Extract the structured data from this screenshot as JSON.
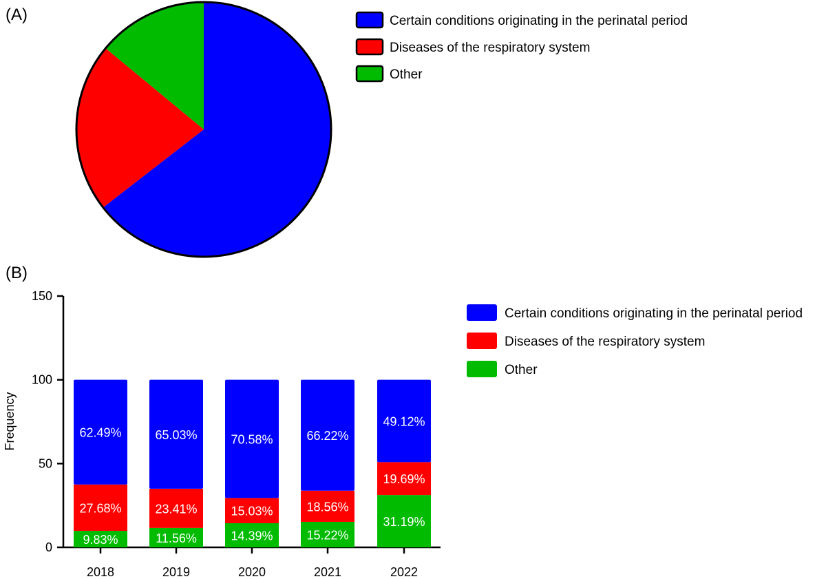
{
  "panels": {
    "a_label": "(A)",
    "b_label": "(B)"
  },
  "colors": {
    "perinatal": "#0000ff",
    "respiratory": "#ff0000",
    "other": "#00bb00"
  },
  "chart_data": [
    {
      "type": "pie",
      "panel": "(A)",
      "labels": [
        "Certain conditions originating in the perinatal period",
        "Diseases of the respiratory system",
        "Other"
      ],
      "values": [
        64.5,
        21.5,
        14.0
      ],
      "colors": [
        "#0000ff",
        "#ff0000",
        "#00bb00"
      ],
      "legend": {
        "position": "right",
        "entries": [
          "Certain conditions originating in the perinatal period",
          "Diseases of the respiratory system",
          "Other"
        ]
      }
    },
    {
      "type": "bar",
      "stacked": true,
      "panel": "(B)",
      "categories": [
        "2018",
        "2019",
        "2020",
        "2021",
        "2022"
      ],
      "series": [
        {
          "name": "Other",
          "color": "#00bb00",
          "values": [
            9.83,
            11.56,
            14.39,
            15.22,
            31.19
          ],
          "labels": [
            "9.83%",
            "11.56%",
            "14.39%",
            "15.22%",
            "31.19%"
          ]
        },
        {
          "name": "Diseases of the respiratory system",
          "color": "#ff0000",
          "values": [
            27.68,
            23.41,
            15.03,
            18.56,
            19.69
          ],
          "labels": [
            "27.68%",
            "23.41%",
            "15.03%",
            "18.56%",
            "19.69%"
          ]
        },
        {
          "name": "Certain conditions originating in the perinatal period",
          "color": "#0000ff",
          "values": [
            62.49,
            65.03,
            70.58,
            66.22,
            49.12
          ],
          "labels": [
            "62.49%",
            "65.03%",
            "70.58%",
            "66.22%",
            "49.12%"
          ]
        }
      ],
      "ylabel": "Frequency",
      "xlabel": "",
      "ylim": [
        0,
        150
      ],
      "yticks": [
        0,
        50,
        100,
        150
      ],
      "grid": false,
      "legend": {
        "position": "right",
        "entries": [
          "Certain conditions originating in the perinatal period",
          "Diseases of the respiratory system",
          "Other"
        ]
      }
    }
  ]
}
